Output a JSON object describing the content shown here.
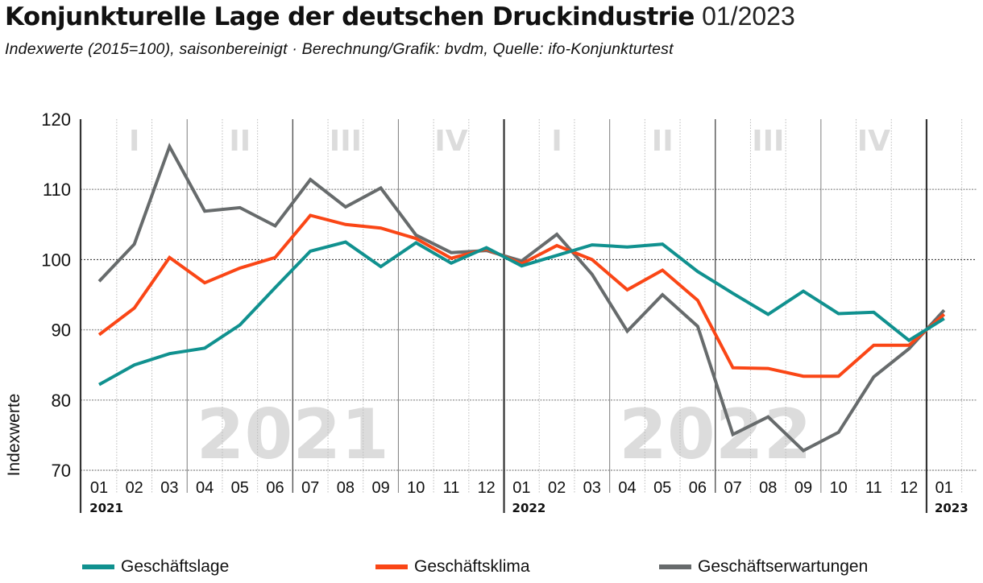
{
  "header": {
    "title": "Konjunkturelle Lage der deutschen Druckindustrie",
    "date": "01/2023",
    "subtitle": "Indexwerte (2015=100), saisonbereinigt · Berechnung/Grafik: bvdm, Quelle: ifo-Konjunkturtest"
  },
  "chart_data": {
    "type": "line",
    "title": "Konjunkturelle Lage der deutschen Druckindustrie 01/2023",
    "subtitle": "Indexwerte (2015=100), saisonbereinigt · Berechnung/Grafik: bvdm, Quelle: ifo-Konjunkturtest",
    "xlabel": "",
    "ylabel": "Indexwerte",
    "ylim": [
      70,
      120
    ],
    "yticks": [
      70,
      80,
      90,
      100,
      110,
      120
    ],
    "grid": true,
    "reference_line": 100,
    "x": [
      "01",
      "02",
      "03",
      "04",
      "05",
      "06",
      "07",
      "08",
      "09",
      "10",
      "11",
      "12",
      "01",
      "02",
      "03",
      "04",
      "05",
      "06",
      "07",
      "08",
      "09",
      "10",
      "11",
      "12",
      "01"
    ],
    "year_labels": [
      {
        "label": "2021",
        "start_index": 0
      },
      {
        "label": "2022",
        "start_index": 12
      },
      {
        "label": "2023",
        "start_index": 24
      }
    ],
    "year_watermarks": [
      {
        "label": "2021",
        "start_index": 0,
        "end_index": 11
      },
      {
        "label": "2022",
        "start_index": 12,
        "end_index": 23
      }
    ],
    "quarter_labels": [
      {
        "label": "I",
        "start_index": 0
      },
      {
        "label": "II",
        "start_index": 3
      },
      {
        "label": "III",
        "start_index": 6
      },
      {
        "label": "IV",
        "start_index": 9
      },
      {
        "label": "I",
        "start_index": 12
      },
      {
        "label": "II",
        "start_index": 15
      },
      {
        "label": "III",
        "start_index": 18
      },
      {
        "label": "IV",
        "start_index": 21
      }
    ],
    "legend_position": "bottom",
    "series": [
      {
        "name": "Geschäftslage",
        "color": "#10918f",
        "values": [
          82.2,
          85.0,
          86.6,
          87.4,
          90.7,
          96.0,
          101.2,
          102.5,
          99.0,
          102.4,
          99.5,
          101.7,
          99.1,
          100.6,
          102.1,
          101.8,
          102.2,
          98.3,
          95.2,
          92.2,
          95.5,
          92.3,
          92.5,
          88.5,
          91.6
        ]
      },
      {
        "name": "Geschäftsklima",
        "color": "#fa4616",
        "values": [
          89.3,
          93.1,
          100.3,
          96.7,
          98.8,
          100.3,
          106.3,
          105.0,
          104.5,
          103.0,
          100.2,
          101.5,
          99.4,
          102.0,
          100.0,
          95.7,
          98.5,
          94.2,
          84.6,
          84.5,
          83.4,
          83.4,
          87.8,
          87.8,
          92.2
        ]
      },
      {
        "name": "Geschäftserwartungen",
        "color": "#676b6c",
        "values": [
          96.9,
          102.2,
          116.1,
          106.9,
          107.4,
          104.8,
          111.4,
          107.5,
          110.2,
          103.5,
          101.0,
          101.3,
          99.8,
          103.6,
          97.9,
          89.8,
          95.0,
          90.5,
          75.1,
          77.6,
          72.8,
          75.4,
          83.3,
          87.3,
          92.8
        ]
      }
    ]
  },
  "legend": {
    "items": [
      {
        "label": "Geschäftslage",
        "color": "#10918f"
      },
      {
        "label": "Geschäftsklima",
        "color": "#fa4616"
      },
      {
        "label": "Geschäftserwartungen",
        "color": "#676b6c"
      }
    ]
  }
}
